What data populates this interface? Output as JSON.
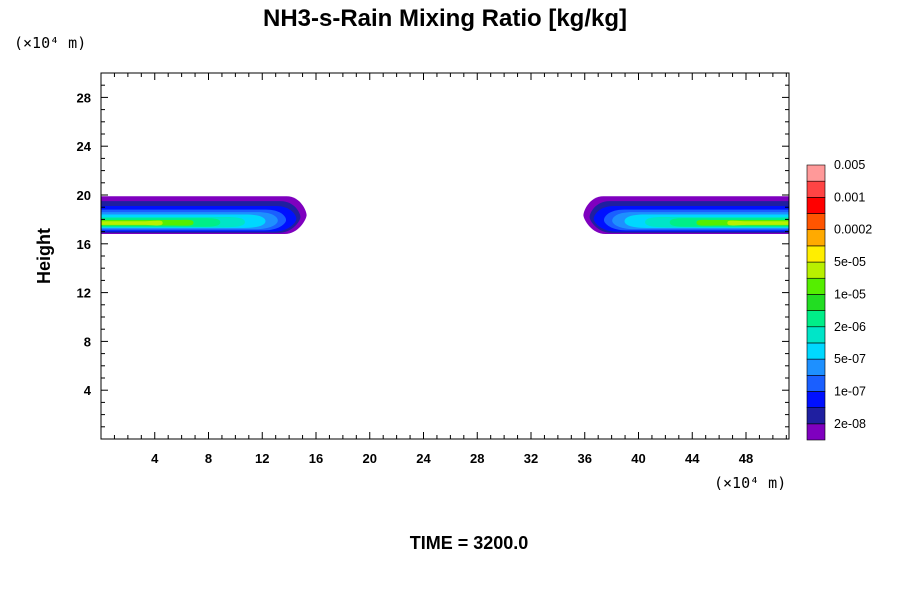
{
  "chart_data": {
    "type": "contour",
    "title": "NH3-s-Rain Mixing Ratio [kg/kg]",
    "ylabel": "Height",
    "x_unit": "(×10⁴ m)",
    "y_unit": "(×10⁴ m)",
    "xlim": [
      0,
      51.2
    ],
    "ylim": [
      0,
      30
    ],
    "xticks": [
      "4",
      "8",
      "12",
      "16",
      "20",
      "24",
      "28",
      "32",
      "36",
      "40",
      "44",
      "48"
    ],
    "yticks": [
      "4",
      "8",
      "12",
      "16",
      "20",
      "24",
      "28"
    ],
    "time_label": "TIME = 3200.0",
    "colorbar": {
      "levels": [
        "2e-08",
        "1e-07",
        "5e-07",
        "2e-06",
        "1e-05",
        "5e-05",
        "0.0002",
        "0.001",
        "0.005"
      ],
      "colors": [
        "#7f00bf",
        "#1f1fa0",
        "#0010ff",
        "#1a5fff",
        "#1e90ff",
        "#00d8ff",
        "#00e5c8",
        "#00ee88",
        "#22dd22",
        "#55ee00",
        "#b8f000",
        "#ffee00",
        "#ffaa00",
        "#ff5500",
        "#ff0000",
        "#ff4444",
        "#ff9999"
      ]
    },
    "features": [
      {
        "name": "left",
        "x_range": [
          0,
          15.3
        ],
        "y_range": [
          16.8,
          19.9
        ]
      },
      {
        "name": "right",
        "x_range": [
          35.9,
          51.2
        ],
        "y_range": [
          16.8,
          19.9
        ]
      }
    ]
  }
}
